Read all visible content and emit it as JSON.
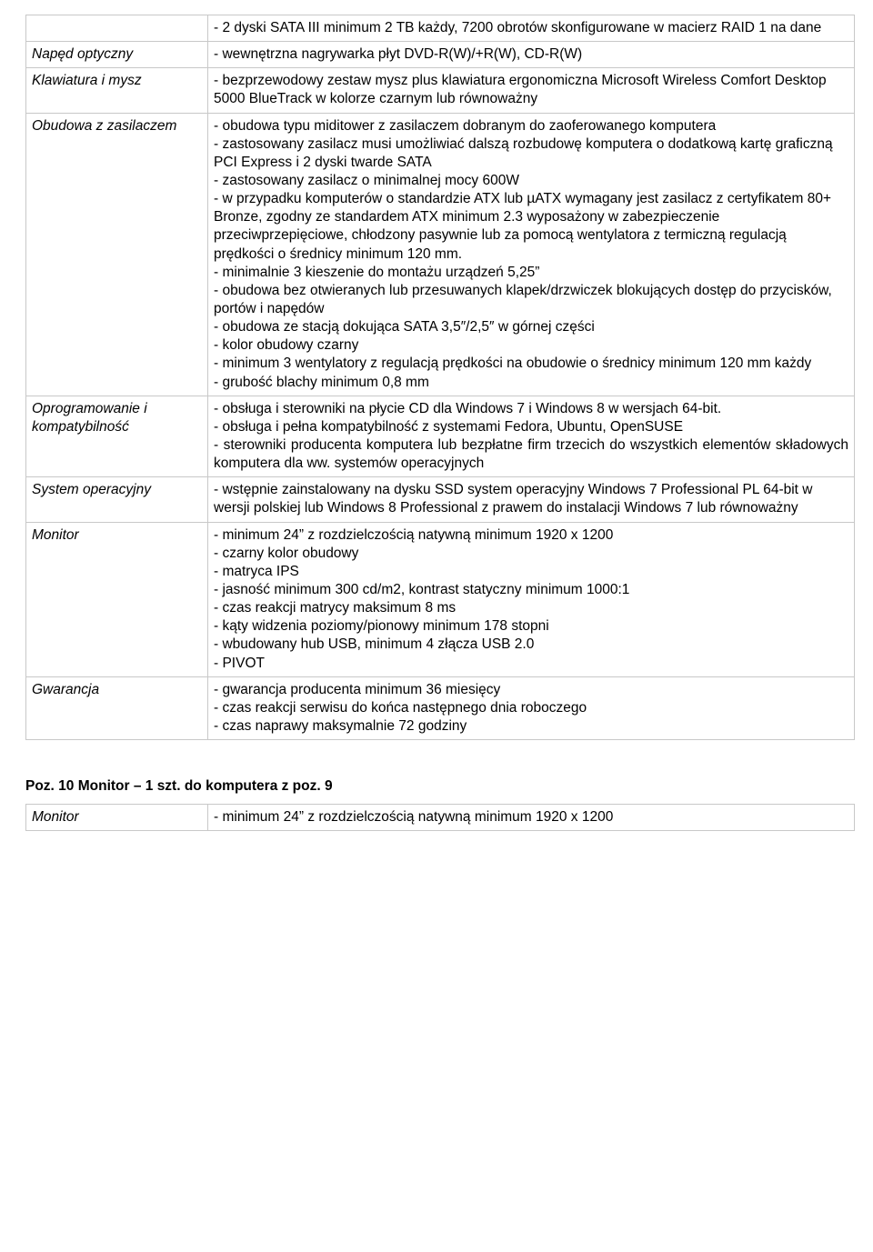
{
  "table1": {
    "rows": [
      {
        "label": "",
        "value": "- 2 dyski SATA III minimum 2 TB każdy, 7200 obrotów skonfigurowane w macierz RAID 1 na dane",
        "justify": false
      },
      {
        "label": "Napęd optyczny",
        "value": "- wewnętrzna nagrywarka płyt DVD-R(W)/+R(W), CD-R(W)",
        "justify": false
      },
      {
        "label": "Klawiatura i mysz",
        "value": "- bezprzewodowy zestaw mysz plus klawiatura ergonomiczna Microsoft Wireless Comfort Desktop 5000 BlueTrack w kolorze czarnym lub równoważny",
        "justify": false
      },
      {
        "label": "Obudowa z zasilaczem",
        "value": "- obudowa typu miditower z zasilaczem dobranym do zaoferowanego komputera\n- zastosowany zasilacz musi umożliwiać dalszą rozbudowę komputera o dodatkową kartę graficzną PCI Express i 2 dyski twarde SATA\n- zastosowany zasilacz o minimalnej mocy 600W\n- w przypadku komputerów o standardzie ATX lub µATX wymagany jest zasilacz z certyfikatem 80+ Bronze, zgodny ze standardem ATX minimum 2.3 wyposażony w zabezpieczenie przeciwprzepięciowe, chłodzony pasywnie lub za pomocą wentylatora z termiczną regulacją prędkości o średnicy minimum 120 mm.\n- minimalnie 3 kieszenie do montażu urządzeń 5,25”\n- obudowa bez otwieranych lub przesuwanych klapek/drzwiczek blokujących dostęp do przycisków, portów i napędów\n- obudowa ze stacją dokująca SATA 3,5″/2,5″ w górnej części\n- kolor obudowy czarny\n- minimum 3 wentylatory z regulacją prędkości na obudowie o średnicy minimum 120 mm każdy\n- grubość blachy minimum 0,8 mm",
        "justify": false
      },
      {
        "label": "Oprogramowanie i kompatybilność",
        "value": "- obsługa i sterowniki na płycie CD dla Windows 7 i Windows 8 w wersjach 64-bit.\n- obsługa i pełna kompatybilność z systemami Fedora, Ubuntu, OpenSUSE\n- sterowniki producenta komputera lub bezpłatne firm trzecich do wszystkich elementów składowych komputera dla ww. systemów operacyjnych",
        "justify": true
      },
      {
        "label": "System operacyjny",
        "value": "- wstępnie zainstalowany na dysku SSD system operacyjny Windows 7 Professional PL 64-bit w wersji polskiej lub Windows 8 Professional z prawem do instalacji Windows 7 lub równoważny",
        "justify": false
      },
      {
        "label": "Monitor",
        "value": "- minimum 24” z rozdzielczością natywną minimum 1920 x 1200\n- czarny kolor obudowy\n- matryca IPS\n- jasność minimum 300 cd/m2, kontrast statyczny minimum 1000:1\n- czas reakcji matrycy maksimum 8 ms\n- kąty widzenia poziomy/pionowy minimum 178 stopni\n- wbudowany hub USB, minimum 4 złącza USB 2.0\n- PIVOT",
        "justify": false
      },
      {
        "label": "Gwarancja",
        "value": "- gwarancja producenta minimum 36 miesięcy\n- czas reakcji serwisu do końca następnego dnia roboczego\n- czas naprawy maksymalnie 72 godziny",
        "justify": false
      }
    ]
  },
  "section2_title": "Poz. 10  Monitor – 1 szt. do komputera z poz. 9",
  "table2": {
    "rows": [
      {
        "label": "Monitor",
        "value": "- minimum 24” z rozdzielczością natywną minimum 1920 x 1200",
        "justify": false
      }
    ]
  }
}
